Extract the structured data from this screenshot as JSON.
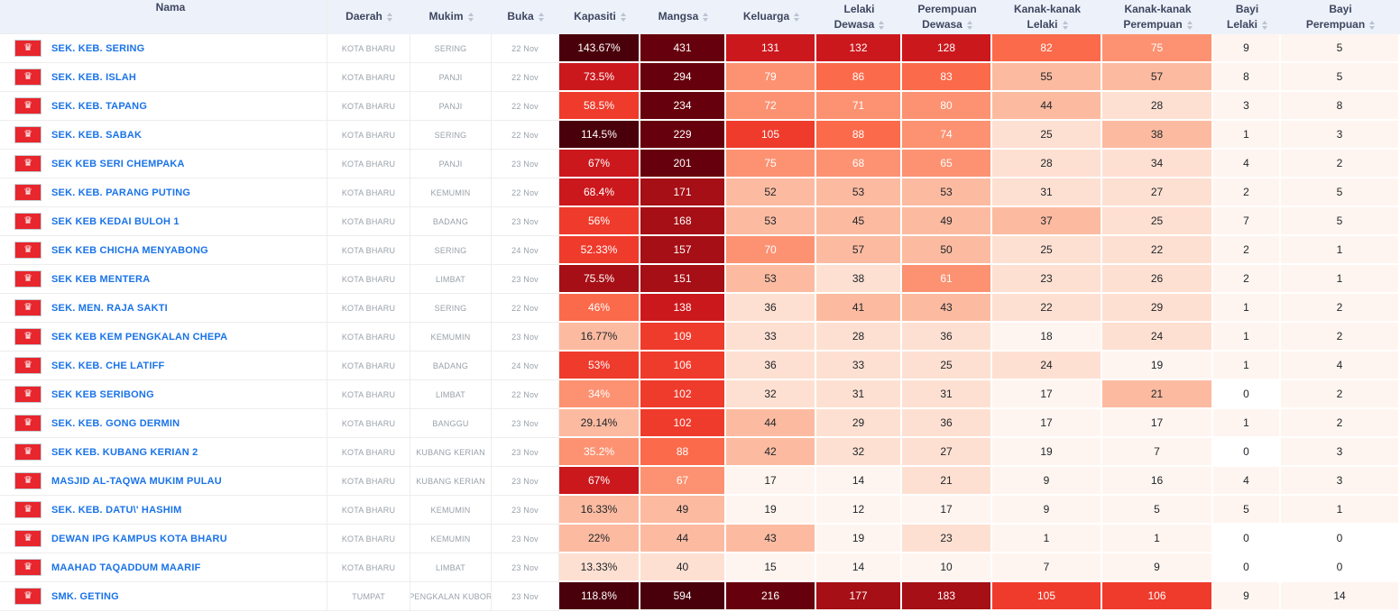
{
  "header": {
    "columns": [
      {
        "id": "name",
        "label": "Nama",
        "sortable": false
      },
      {
        "id": "daerah",
        "label": "Daerah",
        "sortable": true
      },
      {
        "id": "mukim",
        "label": "Mukim",
        "sortable": true
      },
      {
        "id": "buka",
        "label": "Buka",
        "sortable": true
      },
      {
        "id": "kapasiti",
        "label": "Kapasiti",
        "sortable": true
      },
      {
        "id": "mangsa",
        "label": "Mangsa",
        "sortable": true
      },
      {
        "id": "keluarga",
        "label": "Keluarga",
        "sortable": true
      },
      {
        "id": "lelaki_dewasa",
        "label": "Lelaki",
        "label2": "Dewasa",
        "sortable": true
      },
      {
        "id": "perempuan_dewasa",
        "label": "Perempuan",
        "label2": "Dewasa",
        "sortable": true
      },
      {
        "id": "kanak_lelaki",
        "label": "Kanak-kanak",
        "label2": "Lelaki",
        "sortable": true
      },
      {
        "id": "kanak_perempuan",
        "label": "Kanak-kanak",
        "label2": "Perempuan",
        "sortable": true
      },
      {
        "id": "bayi_lelaki",
        "label": "Bayi",
        "label2": "Lelaki",
        "sortable": true
      },
      {
        "id": "bayi_perempuan",
        "label": "Bayi",
        "label2": "Perempuan",
        "sortable": true
      }
    ]
  },
  "flag_icon": {
    "name": "kelantan-flag-icon",
    "glyph": "♛",
    "bg": "#e8262d"
  },
  "palette": [
    "#ffffff",
    "#fff5f0",
    "#fee0d2",
    "#fcbba1",
    "#fc9272",
    "#fb6a4a",
    "#ef3b2c",
    "#cb181d",
    "#a50f15",
    "#67000d",
    "#4a000b"
  ],
  "colors": {
    "header_bg": "#edf1f9",
    "header_text": "#3e4660",
    "link": "#1a73e8",
    "muted_text": "#9aa1a9",
    "dark_cell_text": "#ffffff",
    "light_cell_text": "#212529"
  },
  "rows": [
    {
      "name": "SEK. KEB. SERING",
      "daerah": "KOTA BHARU",
      "mukim": "SERING",
      "buka": "22 Nov",
      "values": [
        "143.67%",
        "431",
        "131",
        "132",
        "128",
        "82",
        "75",
        "9",
        "5"
      ],
      "levels": [
        10,
        9,
        7,
        7,
        7,
        5,
        4,
        1,
        1
      ]
    },
    {
      "name": "SEK. KEB. ISLAH",
      "daerah": "KOTA BHARU",
      "mukim": "PANJI",
      "buka": "22 Nov",
      "values": [
        "73.5%",
        "294",
        "79",
        "86",
        "83",
        "55",
        "57",
        "8",
        "5"
      ],
      "levels": [
        7,
        9,
        4,
        5,
        5,
        3,
        3,
        1,
        1
      ]
    },
    {
      "name": "SEK. KEB. TAPANG",
      "daerah": "KOTA BHARU",
      "mukim": "PANJI",
      "buka": "22 Nov",
      "values": [
        "58.5%",
        "234",
        "72",
        "71",
        "80",
        "44",
        "28",
        "3",
        "8"
      ],
      "levels": [
        6,
        9,
        4,
        4,
        4,
        3,
        2,
        1,
        1
      ]
    },
    {
      "name": "SEK. KEB. SABAK",
      "daerah": "KOTA BHARU",
      "mukim": "SERING",
      "buka": "22 Nov",
      "values": [
        "114.5%",
        "229",
        "105",
        "88",
        "74",
        "25",
        "38",
        "1",
        "3"
      ],
      "levels": [
        10,
        9,
        6,
        5,
        4,
        2,
        3,
        1,
        1
      ]
    },
    {
      "name": "SEK KEB SERI CHEMPAKA",
      "daerah": "KOTA BHARU",
      "mukim": "PANJI",
      "buka": "23 Nov",
      "values": [
        "67%",
        "201",
        "75",
        "68",
        "65",
        "28",
        "34",
        "4",
        "2"
      ],
      "levels": [
        7,
        9,
        4,
        4,
        4,
        2,
        2,
        1,
        1
      ]
    },
    {
      "name": "SEK. KEB. PARANG PUTING",
      "daerah": "KOTA BHARU",
      "mukim": "KEMUMIN",
      "buka": "22 Nov",
      "values": [
        "68.4%",
        "171",
        "52",
        "53",
        "53",
        "31",
        "27",
        "2",
        "5"
      ],
      "levels": [
        7,
        8,
        3,
        3,
        3,
        2,
        2,
        1,
        1
      ]
    },
    {
      "name": "SEK KEB KEDAI BULOH 1",
      "daerah": "KOTA BHARU",
      "mukim": "BADANG",
      "buka": "23 Nov",
      "values": [
        "56%",
        "168",
        "53",
        "45",
        "49",
        "37",
        "25",
        "7",
        "5"
      ],
      "levels": [
        6,
        8,
        3,
        3,
        3,
        3,
        2,
        1,
        1
      ]
    },
    {
      "name": "SEK KEB CHICHA MENYABONG",
      "daerah": "KOTA BHARU",
      "mukim": "SERING",
      "buka": "24 Nov",
      "values": [
        "52.33%",
        "157",
        "70",
        "57",
        "50",
        "25",
        "22",
        "2",
        "1"
      ],
      "levels": [
        6,
        8,
        4,
        3,
        3,
        2,
        2,
        1,
        1
      ]
    },
    {
      "name": "SEK KEB MENTERA",
      "daerah": "KOTA BHARU",
      "mukim": "LIMBAT",
      "buka": "23 Nov",
      "values": [
        "75.5%",
        "151",
        "53",
        "38",
        "61",
        "23",
        "26",
        "2",
        "1"
      ],
      "levels": [
        8,
        8,
        3,
        2,
        4,
        2,
        2,
        1,
        1
      ]
    },
    {
      "name": "SEK. MEN. RAJA SAKTI",
      "daerah": "KOTA BHARU",
      "mukim": "SERING",
      "buka": "22 Nov",
      "values": [
        "46%",
        "138",
        "36",
        "41",
        "43",
        "22",
        "29",
        "1",
        "2"
      ],
      "levels": [
        5,
        7,
        2,
        3,
        3,
        2,
        2,
        1,
        1
      ]
    },
    {
      "name": "SEK KEB KEM PENGKALAN CHEPA",
      "daerah": "KOTA BHARU",
      "mukim": "KEMUMIN",
      "buka": "23 Nov",
      "values": [
        "16.77%",
        "109",
        "33",
        "28",
        "36",
        "18",
        "24",
        "1",
        "2"
      ],
      "levels": [
        3,
        6,
        2,
        2,
        2,
        1,
        2,
        1,
        1
      ]
    },
    {
      "name": "SEK. KEB. CHE LATIFF",
      "daerah": "KOTA BHARU",
      "mukim": "BADANG",
      "buka": "24 Nov",
      "values": [
        "53%",
        "106",
        "36",
        "33",
        "25",
        "24",
        "19",
        "1",
        "4"
      ],
      "levels": [
        6,
        6,
        2,
        2,
        2,
        2,
        1,
        1,
        1
      ]
    },
    {
      "name": "SEK KEB SERIBONG",
      "daerah": "KOTA BHARU",
      "mukim": "LIMBAT",
      "buka": "22 Nov",
      "values": [
        "34%",
        "102",
        "32",
        "31",
        "31",
        "17",
        "21",
        "0",
        "2"
      ],
      "levels": [
        4,
        6,
        2,
        2,
        2,
        1,
        3,
        0,
        1
      ]
    },
    {
      "name": "SEK. KEB. GONG DERMIN",
      "daerah": "KOTA BHARU",
      "mukim": "BANGGU",
      "buka": "23 Nov",
      "values": [
        "29.14%",
        "102",
        "44",
        "29",
        "36",
        "17",
        "17",
        "1",
        "2"
      ],
      "levels": [
        3,
        6,
        3,
        2,
        2,
        1,
        1,
        1,
        1
      ]
    },
    {
      "name": "SEK KEB. KUBANG KERIAN 2",
      "daerah": "KOTA BHARU",
      "mukim": "KUBANG KERIAN",
      "buka": "23 Nov",
      "values": [
        "35.2%",
        "88",
        "42",
        "32",
        "27",
        "19",
        "7",
        "0",
        "3"
      ],
      "levels": [
        4,
        5,
        3,
        2,
        2,
        1,
        1,
        0,
        1
      ]
    },
    {
      "name": "MASJID AL-TAQWA MUKIM PULAU",
      "daerah": "KOTA BHARU",
      "mukim": "KUBANG KERIAN",
      "buka": "23 Nov",
      "values": [
        "67%",
        "67",
        "17",
        "14",
        "21",
        "9",
        "16",
        "4",
        "3"
      ],
      "levels": [
        7,
        4,
        1,
        1,
        2,
        1,
        1,
        1,
        1
      ]
    },
    {
      "name": "SEK. KEB. DATU\\' HASHIM",
      "daerah": "KOTA BHARU",
      "mukim": "KEMUMIN",
      "buka": "23 Nov",
      "values": [
        "16.33%",
        "49",
        "19",
        "12",
        "17",
        "9",
        "5",
        "5",
        "1"
      ],
      "levels": [
        3,
        3,
        1,
        1,
        1,
        1,
        1,
        1,
        1
      ]
    },
    {
      "name": "DEWAN IPG KAMPUS KOTA BHARU",
      "daerah": "KOTA BHARU",
      "mukim": "KEMUMIN",
      "buka": "23 Nov",
      "values": [
        "22%",
        "44",
        "43",
        "19",
        "23",
        "1",
        "1",
        "0",
        "0"
      ],
      "levels": [
        3,
        3,
        3,
        1,
        2,
        1,
        1,
        0,
        0
      ]
    },
    {
      "name": "MAAHAD TAQADDUM MAARIF",
      "daerah": "KOTA BHARU",
      "mukim": "LIMBAT",
      "buka": "23 Nov",
      "values": [
        "13.33%",
        "40",
        "15",
        "14",
        "10",
        "7",
        "9",
        "0",
        "0"
      ],
      "levels": [
        2,
        2,
        1,
        1,
        1,
        1,
        1,
        0,
        0
      ]
    },
    {
      "name": "SMK. GETING",
      "daerah": "TUMPAT",
      "mukim": "PENGKALAN KUBOR",
      "buka": "23 Nov",
      "values": [
        "118.8%",
        "594",
        "216",
        "177",
        "183",
        "105",
        "106",
        "9",
        "14"
      ],
      "levels": [
        10,
        10,
        9,
        8,
        8,
        6,
        6,
        1,
        1
      ]
    }
  ]
}
